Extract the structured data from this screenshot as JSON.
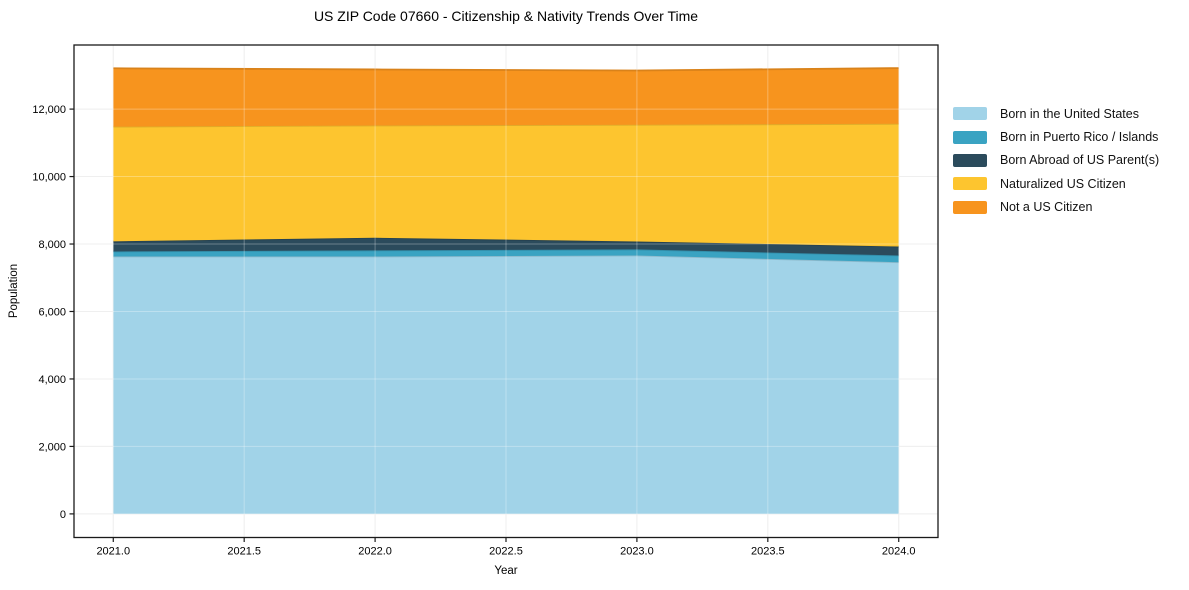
{
  "chart_data": {
    "type": "area",
    "stacked": true,
    "title": "US ZIP Code 07660 - Citizenship & Nativity Trends Over Time",
    "xlabel": "Year",
    "ylabel": "Population",
    "x": [
      2021,
      2022,
      2023,
      2024
    ],
    "series": [
      {
        "name": "Born in the United States",
        "color": "#A1D3E8",
        "values": [
          7630,
          7630,
          7660,
          7460
        ]
      },
      {
        "name": "Born in Puerto Rico / Islands",
        "color": "#3AA3C2",
        "values": [
          150,
          180,
          180,
          200
        ]
      },
      {
        "name": "Born Abroad of US Parent(s)",
        "color": "#2B4B5C",
        "values": [
          300,
          375,
          235,
          265
        ]
      },
      {
        "name": "Naturalized US Citizen",
        "color": "#FDC52F",
        "values": [
          3400,
          3330,
          3460,
          3640
        ]
      },
      {
        "name": "Not a US Citizen",
        "color": "#F7941E",
        "values": [
          1730,
          1660,
          1610,
          1650
        ]
      }
    ],
    "totals": [
      13210,
      13175,
      13145,
      13215
    ],
    "xlim": [
      2020.85,
      2024.15
    ],
    "ylim": [
      -700,
      13900
    ],
    "xticks": {
      "values": [
        2021.0,
        2021.5,
        2022.0,
        2022.5,
        2023.0,
        2023.5,
        2024.0
      ],
      "labels": [
        "2021.0",
        "2021.5",
        "2022.0",
        "2022.5",
        "2023.0",
        "2023.5",
        "2024.0"
      ]
    },
    "yticks": {
      "values": [
        0,
        2000,
        4000,
        6000,
        8000,
        10000,
        12000
      ],
      "labels": [
        "0",
        "2,000",
        "4,000",
        "6,000",
        "8,000",
        "10,000",
        "12,000"
      ]
    },
    "grid": true,
    "grid_color": "#e8e8e8",
    "spine_color": "#1a1a1a",
    "legend_position": "right"
  }
}
